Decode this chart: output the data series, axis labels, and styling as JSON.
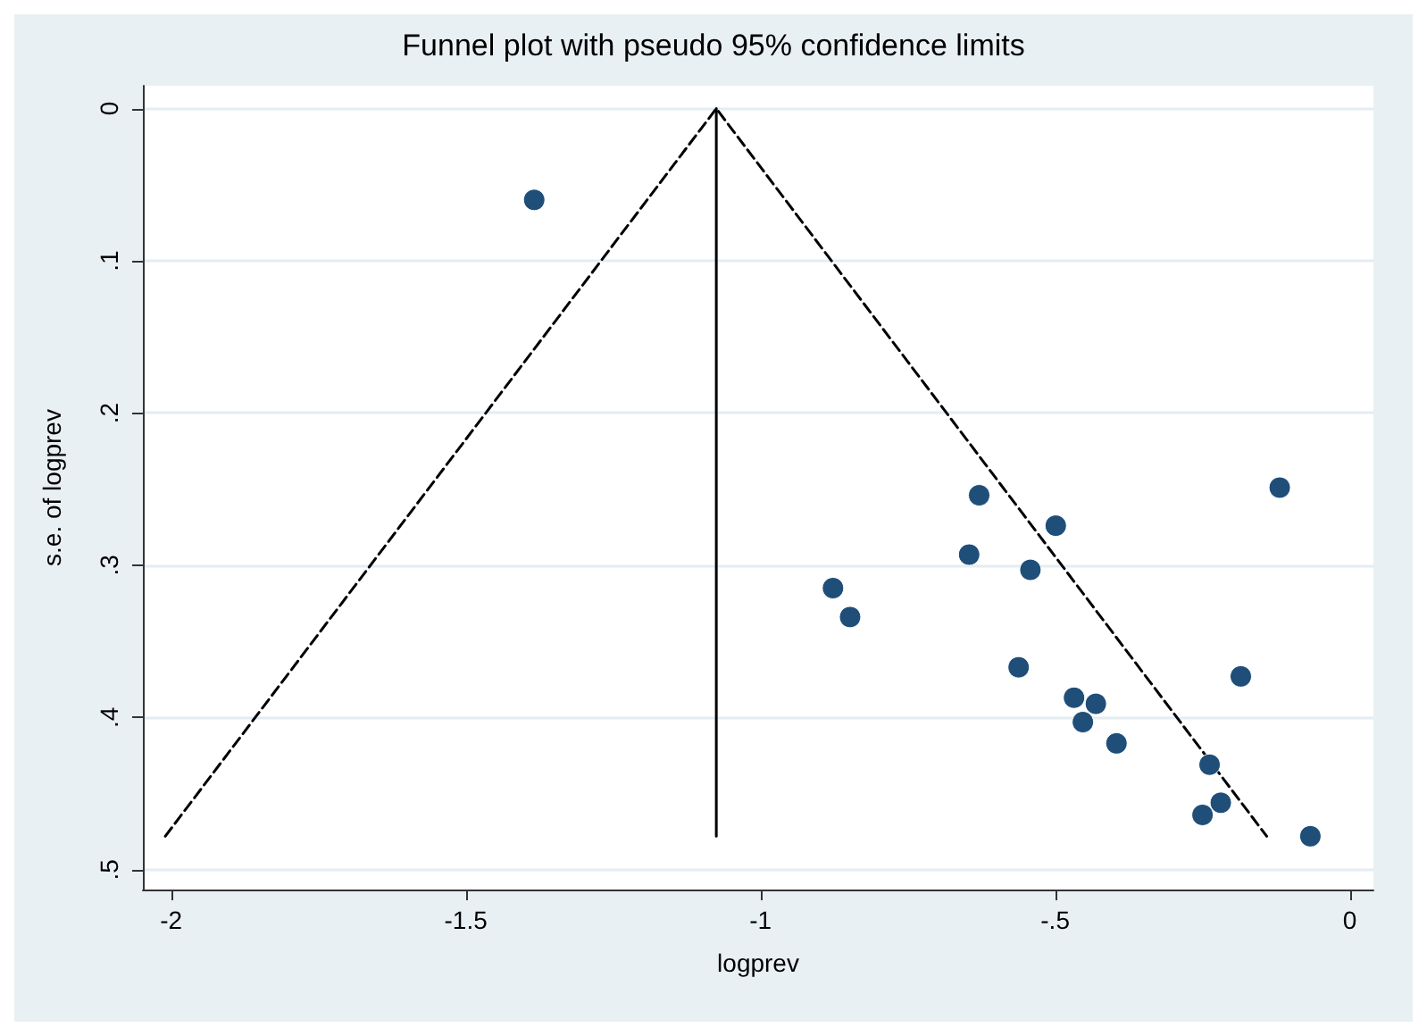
{
  "chart_data": {
    "type": "scatter",
    "title": "Funnel plot with pseudo 95% confidence limits",
    "xlabel": "logprev",
    "ylabel": "s.e. of logprev",
    "xlim": [
      -2.048,
      0.04
    ],
    "ylim": [
      0.513,
      -0.015
    ],
    "xticks": [
      -2,
      -1.5,
      -1,
      {
        "value": -0.5,
        "label": "-.5"
      },
      0
    ],
    "yticks": [
      0,
      {
        "value": 0.1,
        "label": ".1"
      },
      {
        "value": 0.2,
        "label": ".2"
      },
      {
        "value": 0.3,
        "label": ".3"
      },
      {
        "value": 0.4,
        "label": ".4"
      },
      {
        "value": 0.5,
        "label": ".5"
      }
    ],
    "grid": "y",
    "series": [
      {
        "color": "#1f4e79",
        "marker": "circle",
        "x": [
          -1.384,
          -0.629,
          -0.499,
          -0.119,
          -0.646,
          -0.542,
          -0.877,
          -0.848,
          -0.562,
          -0.185,
          -0.468,
          -0.431,
          -0.453,
          -0.396,
          -0.238,
          -0.219,
          -0.25,
          -0.067
        ],
        "values": [
          0.06,
          0.254,
          0.274,
          0.249,
          0.293,
          0.303,
          0.315,
          0.334,
          0.367,
          0.373,
          0.387,
          0.391,
          0.403,
          0.417,
          0.431,
          0.456,
          0.464,
          0.478
        ]
      },
      {
        "type": "line",
        "color": "#000000",
        "marker": "none",
        "line_style": "dashed",
        "x": [
          -2.01,
          -1.075,
          -0.141
        ],
        "values": [
          0.478,
          0,
          0.478
        ]
      },
      {
        "type": "line",
        "color": "#000000",
        "marker": "none",
        "line_style": "solid",
        "x": [
          -1.075,
          -1.075
        ],
        "values": [
          0,
          0.478
        ]
      }
    ]
  }
}
